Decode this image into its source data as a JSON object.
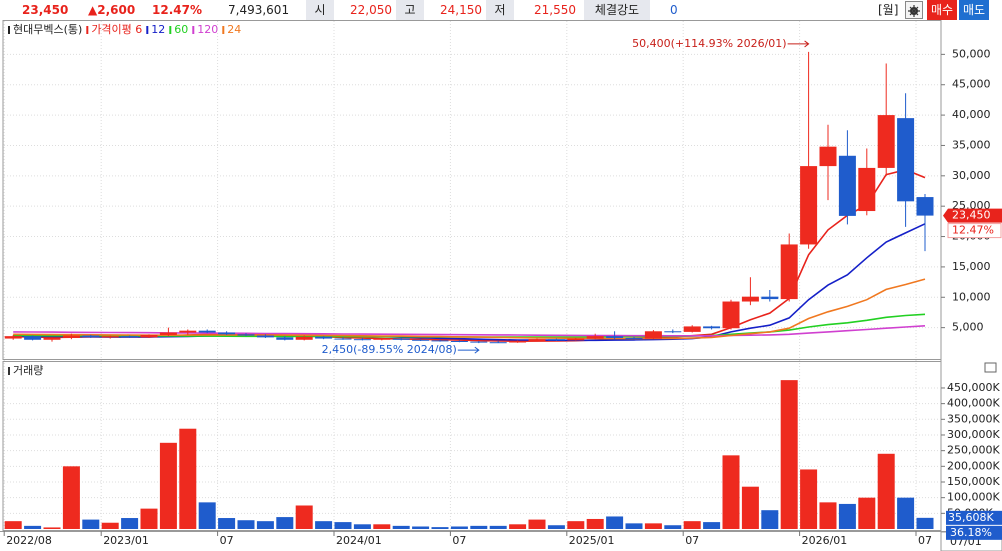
{
  "header": {
    "price": "23,450",
    "change": "▲2,600",
    "change_pct": "12.47%",
    "volume": "7,493,601",
    "open_label": "시",
    "open": "22,050",
    "high_label": "고",
    "high": "24,150",
    "low_label": "저",
    "low": "21,550",
    "strength_label": "체결강도",
    "strength": "0",
    "period": "[월]",
    "buy": "매수",
    "sell": "매도"
  },
  "chart_data": {
    "type": "candlestick",
    "title": "현대무벡스(통)",
    "categories": [
      "2022/08",
      null,
      null,
      null,
      null,
      "2023/01",
      null,
      null,
      null,
      null,
      null,
      "07",
      null,
      null,
      null,
      null,
      null,
      "2024/01",
      null,
      null,
      null,
      null,
      null,
      "07",
      null,
      null,
      null,
      null,
      null,
      "2025/01",
      null,
      null,
      null,
      null,
      null,
      "07",
      null,
      null,
      null,
      null,
      null,
      "2026/01",
      null,
      null,
      null,
      null,
      null,
      "07"
    ],
    "current_date": "07/01",
    "open": [
      3200,
      3600,
      3000,
      3300,
      3700,
      3400,
      3600,
      3400,
      3800,
      4200,
      4500,
      4200,
      3900,
      3700,
      3400,
      3000,
      3500,
      3200,
      3100,
      3000,
      3200,
      3000,
      2900,
      2800,
      2700,
      2600,
      2550,
      2800,
      3100,
      2900,
      3200,
      3600,
      3300,
      3200,
      4400,
      4300,
      5200,
      4900,
      9300,
      10100,
      9700,
      18700,
      31600,
      33300,
      24200,
      31300,
      39500,
      26500
    ],
    "high": [
      3800,
      3700,
      3400,
      4000,
      3800,
      3700,
      3700,
      3900,
      5000,
      4700,
      4700,
      4400,
      4100,
      3900,
      3600,
      3700,
      3600,
      3400,
      3300,
      3300,
      3300,
      3100,
      3000,
      2900,
      2800,
      2800,
      2900,
      3200,
      3200,
      3300,
      4000,
      4400,
      3500,
      4600,
      4700,
      5400,
      5300,
      9600,
      13300,
      11200,
      20500,
      50400,
      38400,
      37500,
      34500,
      48500,
      43600,
      27000
    ],
    "low": [
      3000,
      2900,
      2700,
      3100,
      3300,
      3200,
      3300,
      3300,
      3600,
      3800,
      4100,
      3800,
      3600,
      3300,
      2900,
      2900,
      3100,
      3000,
      2900,
      2900,
      2900,
      2800,
      2700,
      2600,
      2450,
      2500,
      2500,
      2700,
      2800,
      2850,
      3100,
      3100,
      3100,
      3100,
      4100,
      4200,
      4700,
      4700,
      8700,
      9300,
      9300,
      18000,
      26000,
      22000,
      23500,
      30000,
      21600,
      17600
    ],
    "close": [
      3600,
      3000,
      3300,
      3700,
      3400,
      3600,
      3400,
      3800,
      4200,
      4500,
      4200,
      3900,
      3700,
      3400,
      3000,
      3500,
      3200,
      3100,
      3000,
      3200,
      3000,
      2900,
      2800,
      2700,
      2600,
      2550,
      2800,
      3100,
      2900,
      3200,
      3600,
      3300,
      3200,
      4400,
      4300,
      5200,
      4900,
      9300,
      10100,
      9700,
      18700,
      31600,
      34800,
      23400,
      31300,
      40000,
      25800,
      23450
    ],
    "up_color": "#ee2a1f",
    "down_color": "#1f5ccc",
    "series": [
      {
        "name": "가격이평 6",
        "color": "#e8231c",
        "values": [
          3500,
          3450,
          3400,
          3420,
          3450,
          3480,
          3460,
          3470,
          3600,
          3780,
          3900,
          3950,
          3930,
          3870,
          3780,
          3620,
          3500,
          3380,
          3280,
          3200,
          3150,
          3080,
          3020,
          2950,
          2870,
          2800,
          2770,
          2780,
          2820,
          2850,
          2970,
          3120,
          3220,
          3350,
          3480,
          3680,
          3900,
          5000,
          6300,
          7400,
          9800,
          17000,
          21100,
          23500,
          25200,
          30200,
          31000,
          29700
        ]
      },
      {
        "name": "12",
        "color": "#1520c8",
        "values": [
          3600,
          3580,
          3550,
          3520,
          3500,
          3480,
          3470,
          3460,
          3500,
          3560,
          3620,
          3680,
          3720,
          3730,
          3730,
          3700,
          3680,
          3650,
          3600,
          3520,
          3430,
          3340,
          3250,
          3180,
          3100,
          3020,
          2970,
          2950,
          2930,
          2910,
          2920,
          2950,
          2980,
          3030,
          3100,
          3200,
          3500,
          4300,
          4900,
          5400,
          6600,
          9600,
          12000,
          13700,
          16500,
          19100,
          20600,
          22100
        ]
      },
      {
        "name": "60",
        "color": "#22d022",
        "values": [
          3700,
          3690,
          3680,
          3670,
          3660,
          3650,
          3640,
          3630,
          3620,
          3610,
          3600,
          3590,
          3580,
          3570,
          3560,
          3550,
          3540,
          3530,
          3520,
          3510,
          3500,
          3490,
          3480,
          3470,
          3460,
          3450,
          3440,
          3440,
          3450,
          3460,
          3480,
          3500,
          3520,
          3540,
          3570,
          3600,
          3700,
          3900,
          4100,
          4300,
          4600,
          5100,
          5500,
          5800,
          6200,
          6700,
          7000,
          7200
        ]
      },
      {
        "name": "120",
        "color": "#d040d0",
        "values": [
          4300,
          4280,
          4260,
          4240,
          4220,
          4200,
          4180,
          4160,
          4140,
          4120,
          4100,
          4080,
          4060,
          4040,
          4020,
          4000,
          3980,
          3960,
          3940,
          3920,
          3900,
          3880,
          3860,
          3840,
          3820,
          3800,
          3780,
          3760,
          3740,
          3720,
          3700,
          3690,
          3680,
          3670,
          3660,
          3650,
          3660,
          3700,
          3750,
          3800,
          3900,
          4100,
          4300,
          4500,
          4700,
          4900,
          5100,
          5300
        ]
      },
      {
        "name": "24",
        "color": "#f07820",
        "values": [
          3900,
          3880,
          3860,
          3840,
          3820,
          3800,
          3780,
          3760,
          3760,
          3770,
          3780,
          3790,
          3790,
          3780,
          3770,
          3750,
          3720,
          3690,
          3660,
          3630,
          3600,
          3560,
          3520,
          3480,
          3440,
          3390,
          3340,
          3300,
          3270,
          3240,
          3220,
          3210,
          3200,
          3210,
          3230,
          3270,
          3400,
          3700,
          4000,
          4300,
          4900,
          6500,
          7600,
          8500,
          9600,
          11300,
          12100,
          13000
        ]
      }
    ],
    "max_label": "50,400(+114.93% 2026/01)",
    "min_label": "2,450(-89.55% 2024/08)",
    "ylim": [
      0,
      55000
    ],
    "yticks": [
      {
        "value": 5000,
        "label": "5,000"
      },
      {
        "value": 10000,
        "label": "10,000"
      },
      {
        "value": 15000,
        "label": "15,000"
      },
      {
        "value": 20000,
        "label": "20,000"
      },
      {
        "value": 25000,
        "label": "25,000"
      },
      {
        "value": 30000,
        "label": "30,000"
      },
      {
        "value": 35000,
        "label": "35,000"
      },
      {
        "value": 40000,
        "label": "40,000"
      },
      {
        "value": 45000,
        "label": "45,000"
      },
      {
        "value": 50000,
        "label": "50,000"
      }
    ],
    "volume_title": "거래량",
    "volume": [
      25,
      10,
      5,
      200,
      30,
      20,
      35,
      65,
      275,
      320,
      85,
      35,
      28,
      25,
      38,
      75,
      25,
      22,
      15,
      15,
      10,
      8,
      6,
      8,
      10,
      10,
      15,
      30,
      12,
      25,
      32,
      40,
      18,
      18,
      12,
      25,
      22,
      235,
      135,
      60,
      475,
      190,
      85,
      80,
      100,
      240,
      100,
      35.608
    ],
    "volume_last_label": "35,608K",
    "volume_ratio": "36.18%",
    "vlim": [
      0,
      485
    ],
    "vticks": [
      {
        "value": 50,
        "label": "50,000K"
      },
      {
        "value": 100,
        "label": "100,000K"
      },
      {
        "value": 150,
        "label": "150,000K"
      },
      {
        "value": 200,
        "label": "200,000K"
      },
      {
        "value": 250,
        "label": "250,000K"
      },
      {
        "value": 300,
        "label": "300,000K"
      },
      {
        "value": 350,
        "label": "350,000K"
      },
      {
        "value": 400,
        "label": "400,000K"
      },
      {
        "value": 450,
        "label": "450,000K"
      }
    ],
    "grid": true
  }
}
